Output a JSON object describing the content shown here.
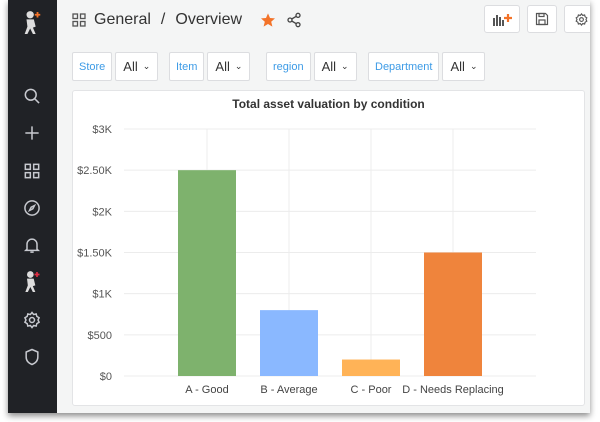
{
  "header": {
    "breadcrumb_folder": "General",
    "separator": "/",
    "dashboard_title": "Overview"
  },
  "sidebar": {
    "items": [
      {
        "icon": "logo-icon"
      },
      {
        "icon": "search-icon"
      },
      {
        "icon": "plus-icon"
      },
      {
        "icon": "dashboards-icon"
      },
      {
        "icon": "explore-compass-icon"
      },
      {
        "icon": "alerting-bell-icon"
      },
      {
        "icon": "profile-avatar-icon"
      },
      {
        "icon": "gear-icon"
      },
      {
        "icon": "shield-icon"
      }
    ]
  },
  "variables": [
    {
      "label": "Store",
      "value": "All"
    },
    {
      "label": "Item",
      "value": "All"
    },
    {
      "label": "region",
      "value": "All"
    },
    {
      "label": "Department",
      "value": "All"
    }
  ],
  "colors": {
    "star": "#f37329",
    "label": "#3d9be6",
    "sidebar": "#202226"
  },
  "chart_data": {
    "type": "bar",
    "title": "Total asset valuation by condition",
    "categories": [
      "A - Good",
      "B - Average",
      "C - Poor",
      "D - Needs Replacing"
    ],
    "values": [
      2500,
      800,
      200,
      1500
    ],
    "colors": [
      "#7eb26d",
      "#8ab8ff",
      "#ffb357",
      "#ef843c"
    ],
    "ylim": [
      0,
      3000
    ],
    "yticks": [
      {
        "v": 0,
        "label": "$0"
      },
      {
        "v": 500,
        "label": "$500"
      },
      {
        "v": 1000,
        "label": "$1K"
      },
      {
        "v": 1500,
        "label": "$1.50K"
      },
      {
        "v": 2000,
        "label": "$2K"
      },
      {
        "v": 2500,
        "label": "$2.50K"
      },
      {
        "v": 3000,
        "label": "$3K"
      }
    ],
    "grid": true,
    "legend": "none"
  }
}
